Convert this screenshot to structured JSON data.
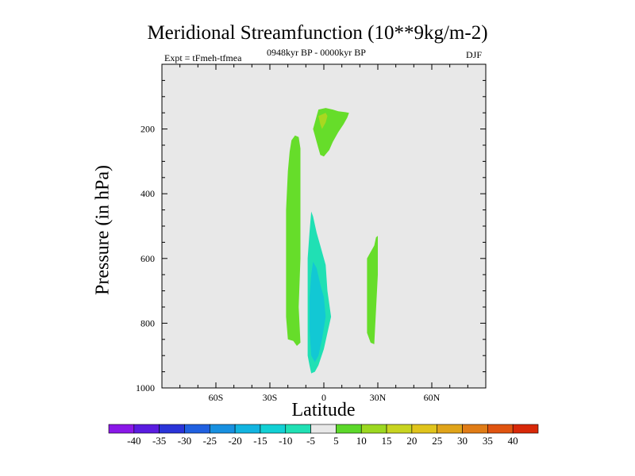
{
  "chart_data": {
    "type": "contour",
    "title": "Meridional Streamfunction (10**9kg/m-2)",
    "left_label": "Expt = tFmeh-tfmea",
    "center_label": "0948kyr BP - 0000kyr BP",
    "right_label": "DJF",
    "xlabel": "Latitude",
    "ylabel": "Pressure (in hPa)",
    "xlim": [
      -90,
      90
    ],
    "ylim": [
      1000,
      0
    ],
    "x_ticks": [
      {
        "value": -60,
        "label": "60S"
      },
      {
        "value": -30,
        "label": "30S"
      },
      {
        "value": 0,
        "label": "0"
      },
      {
        "value": 30,
        "label": "30N"
      },
      {
        "value": 60,
        "label": "60N"
      }
    ],
    "y_ticks": [
      {
        "value": 200,
        "label": "200"
      },
      {
        "value": 400,
        "label": "400"
      },
      {
        "value": 600,
        "label": "600"
      },
      {
        "value": 800,
        "label": "800"
      },
      {
        "value": 1000,
        "label": "1000"
      }
    ],
    "background_color": "#e8e8e8",
    "contour_regions": [
      {
        "name": "upper-positive-cell",
        "level": "5 to 10",
        "color": "#66dd2a",
        "points": [
          [
            -3,
            140
          ],
          [
            1,
            135
          ],
          [
            5,
            140
          ],
          [
            8,
            145
          ],
          [
            12,
            148
          ],
          [
            14,
            150
          ],
          [
            13,
            165
          ],
          [
            11,
            185
          ],
          [
            8,
            210
          ],
          [
            5,
            240
          ],
          [
            3,
            265
          ],
          [
            0,
            285
          ],
          [
            -2,
            280
          ],
          [
            -3,
            260
          ],
          [
            -4,
            240
          ],
          [
            -5,
            220
          ],
          [
            -6,
            200
          ],
          [
            -5,
            180
          ],
          [
            -4,
            160
          ]
        ]
      },
      {
        "name": "upper-positive-core",
        "level": "10 to 15",
        "color": "#a8d820",
        "points": [
          [
            -3,
            160
          ],
          [
            1,
            150
          ],
          [
            2,
            160
          ],
          [
            1,
            180
          ],
          [
            -1,
            200
          ],
          [
            -2,
            185
          ]
        ]
      },
      {
        "name": "southern-positive-cell",
        "level": "5 to 10",
        "color": "#66dd2a",
        "points": [
          [
            -18,
            235
          ],
          [
            -16,
            220
          ],
          [
            -14,
            225
          ],
          [
            -13,
            260
          ],
          [
            -13,
            400
          ],
          [
            -13,
            600
          ],
          [
            -14,
            750
          ],
          [
            -13,
            860
          ],
          [
            -15,
            870
          ],
          [
            -17,
            855
          ],
          [
            -20,
            850
          ],
          [
            -21,
            780
          ],
          [
            -21,
            600
          ],
          [
            -21,
            450
          ],
          [
            -20,
            330
          ],
          [
            -19,
            270
          ]
        ]
      },
      {
        "name": "equatorial-negative-cell",
        "level": "-5 to -10",
        "color": "#20e0b4",
        "points": [
          [
            -7,
            455
          ],
          [
            -6,
            470
          ],
          [
            -4,
            520
          ],
          [
            -2,
            560
          ],
          [
            1,
            620
          ],
          [
            2,
            700
          ],
          [
            4,
            780
          ],
          [
            2,
            830
          ],
          [
            0,
            880
          ],
          [
            -3,
            930
          ],
          [
            -5,
            950
          ],
          [
            -7,
            955
          ],
          [
            -8,
            930
          ],
          [
            -9,
            900
          ],
          [
            -9,
            800
          ],
          [
            -9,
            700
          ],
          [
            -9,
            600
          ],
          [
            -8,
            520
          ]
        ]
      },
      {
        "name": "equatorial-negative-core",
        "level": "-10 to -15",
        "color": "#12c8d4",
        "points": [
          [
            -6,
            610
          ],
          [
            -4,
            630
          ],
          [
            -2,
            680
          ],
          [
            0,
            720
          ],
          [
            1,
            780
          ],
          [
            -1,
            850
          ],
          [
            -3,
            900
          ],
          [
            -5,
            920
          ],
          [
            -7,
            900
          ],
          [
            -8,
            820
          ],
          [
            -8,
            720
          ],
          [
            -7,
            650
          ]
        ]
      },
      {
        "name": "northern-positive-cell",
        "level": "5 to 10",
        "color": "#66dd2a",
        "points": [
          [
            29,
            535
          ],
          [
            30,
            530
          ],
          [
            30,
            650
          ],
          [
            29,
            760
          ],
          [
            28,
            865
          ],
          [
            26,
            860
          ],
          [
            24,
            830
          ],
          [
            24,
            700
          ],
          [
            24,
            600
          ],
          [
            26,
            580
          ],
          [
            28,
            560
          ]
        ]
      }
    ],
    "colorbar": {
      "labels": [
        "-40",
        "-35",
        "-30",
        "-25",
        "-20",
        "-15",
        "-10",
        "-5",
        "5",
        "10",
        "15",
        "20",
        "25",
        "30",
        "35",
        "40"
      ],
      "colors": [
        "#8a18e8",
        "#5a1ce0",
        "#2a34d8",
        "#2060e0",
        "#1890e0",
        "#12b4e0",
        "#12d0d4",
        "#20e0b4",
        "#e8e8e8",
        "#5cd82a",
        "#9cd820",
        "#c8d420",
        "#e0c41c",
        "#e0a41a",
        "#e07c16",
        "#e05410",
        "#d82808"
      ]
    }
  }
}
